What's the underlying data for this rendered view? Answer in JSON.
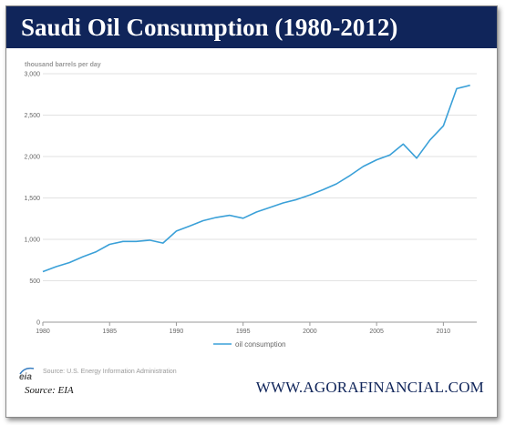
{
  "title": "Saudi Oil Consumption (1980-2012)",
  "chart_data": {
    "type": "line",
    "ylabel": "thousand barrels per day",
    "xlim": [
      1980,
      2012.5
    ],
    "ylim": [
      0,
      3000
    ],
    "x_ticks": [
      1980,
      1985,
      1990,
      1995,
      2000,
      2005,
      2010
    ],
    "y_ticks": [
      0,
      500,
      1000,
      1500,
      2000,
      2500,
      3000
    ],
    "y_tick_labels": [
      "0",
      "500",
      "1,000",
      "1,500",
      "2,000",
      "2,500",
      "3,000"
    ],
    "grid": true,
    "legend": "bottom-center",
    "series": [
      {
        "name": "oil consumption",
        "color": "#3aa0d8",
        "x": [
          1980,
          1981,
          1982,
          1983,
          1984,
          1985,
          1986,
          1987,
          1988,
          1989,
          1990,
          1991,
          1992,
          1993,
          1994,
          1995,
          1996,
          1997,
          1998,
          1999,
          2000,
          2001,
          2002,
          2003,
          2004,
          2005,
          2006,
          2007,
          2008,
          2009,
          2010,
          2011,
          2012
        ],
        "y": [
          610,
          670,
          720,
          790,
          850,
          940,
          975,
          975,
          990,
          955,
          1100,
          1160,
          1225,
          1265,
          1290,
          1255,
          1330,
          1385,
          1440,
          1480,
          1535,
          1600,
          1670,
          1770,
          1880,
          1960,
          2020,
          2150,
          1980,
          2200,
          2370,
          2820,
          2860
        ]
      }
    ]
  },
  "source_small": "Source: U.S. Energy Information Administration",
  "logo_text": "eia",
  "source_main": "Source: EIA",
  "brand": "WWW.AGORAFINANCIAL.COM"
}
